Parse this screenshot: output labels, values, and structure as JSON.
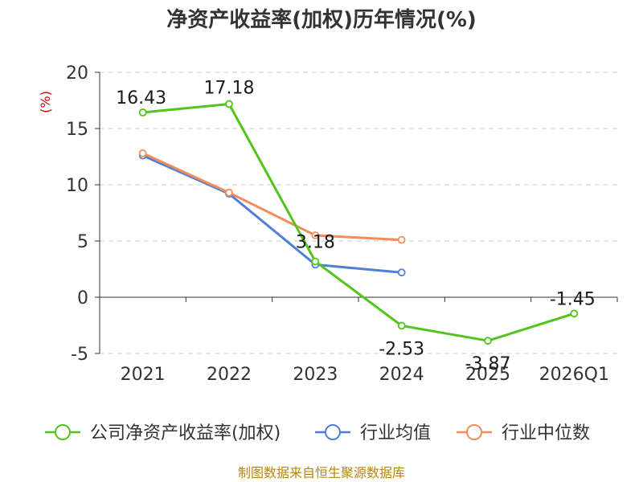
{
  "chart_data": {
    "type": "line",
    "title": "净资产收益率(加权)历年情况(%)",
    "ylabel": "(%)",
    "categories": [
      "2021",
      "2022",
      "2023",
      "2024",
      "2025",
      "2026Q1"
    ],
    "ylim": [
      -5,
      20
    ],
    "yticks": [
      20,
      15,
      10,
      5,
      0,
      -5
    ],
    "series": [
      {
        "name": "公司净资产收益率(加权)",
        "color": "#52c41a",
        "values": [
          16.43,
          17.18,
          3.18,
          -2.53,
          -3.87,
          -1.45
        ],
        "labels": [
          "16.43",
          "17.18",
          "3.18",
          "-2.53",
          "-3.87",
          "-1.45"
        ]
      },
      {
        "name": "行业均值",
        "color": "#4f7fd9",
        "values": [
          12.6,
          9.2,
          2.9,
          2.2,
          null,
          null
        ]
      },
      {
        "name": "行业中位数",
        "color": "#f28c5b",
        "values": [
          12.8,
          9.3,
          5.5,
          5.1,
          null,
          null
        ]
      }
    ],
    "source": "制图数据来自恒生聚源数据库"
  }
}
